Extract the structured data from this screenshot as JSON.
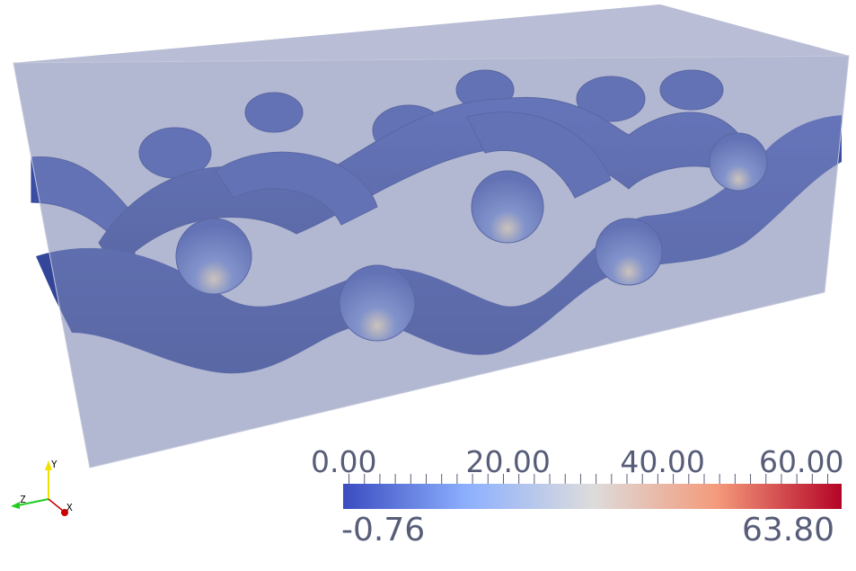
{
  "colorbar": {
    "colormap": "Cool to Warm",
    "range": [
      -0.76,
      63.8
    ],
    "min_label": "-0.76",
    "max_label": "63.80",
    "tick_labels": [
      "0.00",
      "20.00",
      "40.00",
      "60.00"
    ],
    "major_ticks": [
      0,
      20,
      40,
      60
    ],
    "minor_tick_step": 2,
    "colors": [
      "#3b4cc0",
      "#8db0fe",
      "#dddcdc",
      "#f49a7b",
      "#b40426"
    ],
    "label_color": "#575d78"
  },
  "orientation_axes": {
    "x_label": "X",
    "y_label": "Y",
    "z_label": "Z",
    "x_color": "#cc0000",
    "y_color": "#f0e000",
    "z_color": "#22cc22"
  },
  "scene": {
    "box_color": "#b3b8d1",
    "tube_color": "#3a4ea6",
    "tube_shade": "#2a3a88"
  }
}
